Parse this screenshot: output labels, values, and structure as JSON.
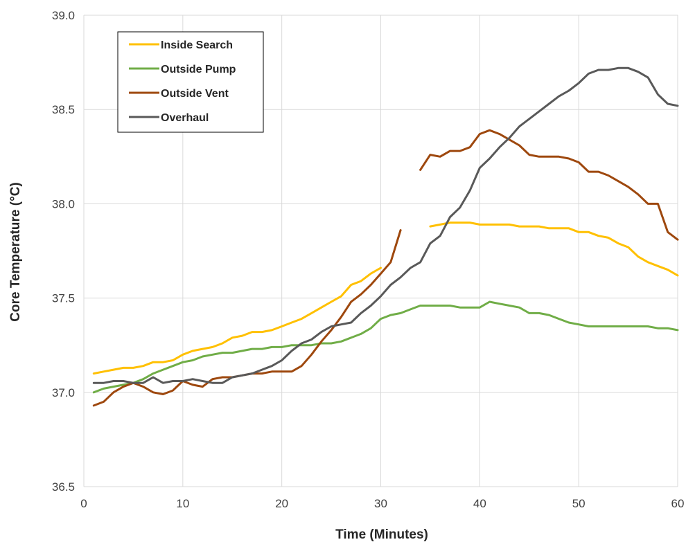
{
  "chart_data": {
    "type": "line",
    "title": "",
    "xlabel": "Time (Minutes)",
    "ylabel": "Core Temperature (°C)",
    "xlim": [
      0,
      60
    ],
    "ylim": [
      36.5,
      39.0
    ],
    "x_ticks": [
      0,
      10,
      20,
      30,
      40,
      50,
      60
    ],
    "x_tick_labels": [
      "0",
      "10",
      "20",
      "30",
      "40",
      "50",
      "60"
    ],
    "y_ticks": [
      36.5,
      37.0,
      37.5,
      38.0,
      38.5,
      39.0
    ],
    "y_tick_labels": [
      "36.5",
      "37.0",
      "37.5",
      "38.0",
      "38.5",
      "39.0"
    ],
    "grid": true,
    "legend_position": "top-left",
    "series": [
      {
        "name": "Inside Search",
        "color": "#FFC000",
        "segments": [
          [
            [
              1,
              37.1
            ],
            [
              2,
              37.11
            ],
            [
              3,
              37.12
            ],
            [
              4,
              37.13
            ],
            [
              5,
              37.13
            ],
            [
              6,
              37.14
            ],
            [
              7,
              37.16
            ],
            [
              8,
              37.16
            ],
            [
              9,
              37.17
            ],
            [
              10,
              37.2
            ],
            [
              11,
              37.22
            ],
            [
              12,
              37.23
            ],
            [
              13,
              37.24
            ],
            [
              14,
              37.26
            ],
            [
              15,
              37.29
            ],
            [
              16,
              37.3
            ],
            [
              17,
              37.32
            ],
            [
              18,
              37.32
            ],
            [
              19,
              37.33
            ],
            [
              20,
              37.35
            ],
            [
              21,
              37.37
            ],
            [
              22,
              37.39
            ],
            [
              23,
              37.42
            ],
            [
              24,
              37.45
            ],
            [
              25,
              37.48
            ],
            [
              26,
              37.51
            ],
            [
              27,
              37.57
            ],
            [
              28,
              37.59
            ],
            [
              29,
              37.63
            ],
            [
              30,
              37.66
            ]
          ],
          [
            [
              35,
              37.88
            ],
            [
              36,
              37.89
            ],
            [
              37,
              37.9
            ],
            [
              38,
              37.9
            ],
            [
              39,
              37.9
            ],
            [
              40,
              37.89
            ],
            [
              41,
              37.89
            ],
            [
              42,
              37.89
            ],
            [
              43,
              37.89
            ],
            [
              44,
              37.88
            ],
            [
              45,
              37.88
            ],
            [
              46,
              37.88
            ],
            [
              47,
              37.87
            ],
            [
              48,
              37.87
            ],
            [
              49,
              37.87
            ],
            [
              50,
              37.85
            ],
            [
              51,
              37.85
            ],
            [
              52,
              37.83
            ],
            [
              53,
              37.82
            ],
            [
              54,
              37.79
            ],
            [
              55,
              37.77
            ],
            [
              56,
              37.72
            ],
            [
              57,
              37.69
            ],
            [
              58,
              37.67
            ],
            [
              59,
              37.65
            ],
            [
              60,
              37.62
            ]
          ]
        ]
      },
      {
        "name": "Outside Pump",
        "color": "#70AD47",
        "segments": [
          [
            [
              1,
              37.0
            ],
            [
              2,
              37.02
            ],
            [
              3,
              37.03
            ],
            [
              4,
              37.04
            ],
            [
              5,
              37.05
            ],
            [
              6,
              37.07
            ],
            [
              7,
              37.1
            ],
            [
              8,
              37.12
            ],
            [
              9,
              37.14
            ],
            [
              10,
              37.16
            ],
            [
              11,
              37.17
            ],
            [
              12,
              37.19
            ],
            [
              13,
              37.2
            ],
            [
              14,
              37.21
            ],
            [
              15,
              37.21
            ],
            [
              16,
              37.22
            ],
            [
              17,
              37.23
            ],
            [
              18,
              37.23
            ],
            [
              19,
              37.24
            ],
            [
              20,
              37.24
            ],
            [
              21,
              37.25
            ],
            [
              22,
              37.25
            ],
            [
              23,
              37.25
            ],
            [
              24,
              37.26
            ],
            [
              25,
              37.26
            ],
            [
              26,
              37.27
            ],
            [
              27,
              37.29
            ],
            [
              28,
              37.31
            ],
            [
              29,
              37.34
            ],
            [
              30,
              37.39
            ],
            [
              31,
              37.41
            ],
            [
              32,
              37.42
            ],
            [
              33,
              37.44
            ],
            [
              34,
              37.46
            ],
            [
              35,
              37.46
            ],
            [
              36,
              37.46
            ],
            [
              37,
              37.46
            ],
            [
              38,
              37.45
            ],
            [
              39,
              37.45
            ],
            [
              40,
              37.45
            ],
            [
              41,
              37.48
            ],
            [
              42,
              37.47
            ],
            [
              43,
              37.46
            ],
            [
              44,
              37.45
            ],
            [
              45,
              37.42
            ],
            [
              46,
              37.42
            ],
            [
              47,
              37.41
            ],
            [
              48,
              37.39
            ],
            [
              49,
              37.37
            ],
            [
              50,
              37.36
            ],
            [
              51,
              37.35
            ],
            [
              52,
              37.35
            ],
            [
              53,
              37.35
            ],
            [
              54,
              37.35
            ],
            [
              55,
              37.35
            ],
            [
              56,
              37.35
            ],
            [
              57,
              37.35
            ],
            [
              58,
              37.34
            ],
            [
              59,
              37.34
            ],
            [
              60,
              37.33
            ]
          ]
        ]
      },
      {
        "name": "Outside Vent",
        "color": "#9E480E",
        "segments": [
          [
            [
              1,
              36.93
            ],
            [
              2,
              36.95
            ],
            [
              3,
              37.0
            ],
            [
              4,
              37.03
            ],
            [
              5,
              37.05
            ],
            [
              6,
              37.03
            ],
            [
              7,
              37.0
            ],
            [
              8,
              36.99
            ],
            [
              9,
              37.01
            ],
            [
              10,
              37.06
            ],
            [
              11,
              37.04
            ],
            [
              12,
              37.03
            ],
            [
              13,
              37.07
            ],
            [
              14,
              37.08
            ],
            [
              15,
              37.08
            ],
            [
              16,
              37.09
            ],
            [
              17,
              37.1
            ],
            [
              18,
              37.1
            ],
            [
              19,
              37.11
            ],
            [
              20,
              37.11
            ],
            [
              21,
              37.11
            ],
            [
              22,
              37.14
            ],
            [
              23,
              37.2
            ],
            [
              24,
              37.27
            ],
            [
              25,
              37.33
            ],
            [
              26,
              37.4
            ],
            [
              27,
              37.48
            ],
            [
              28,
              37.52
            ],
            [
              29,
              37.57
            ],
            [
              30,
              37.63
            ],
            [
              31,
              37.69
            ],
            [
              32,
              37.86
            ]
          ],
          [
            [
              34,
              38.18
            ],
            [
              35,
              38.26
            ],
            [
              36,
              38.25
            ],
            [
              37,
              38.28
            ],
            [
              38,
              38.28
            ],
            [
              39,
              38.3
            ],
            [
              40,
              38.37
            ],
            [
              41,
              38.39
            ],
            [
              42,
              38.37
            ],
            [
              43,
              38.34
            ],
            [
              44,
              38.31
            ],
            [
              45,
              38.26
            ],
            [
              46,
              38.25
            ],
            [
              47,
              38.25
            ],
            [
              48,
              38.25
            ],
            [
              49,
              38.24
            ],
            [
              50,
              38.22
            ],
            [
              51,
              38.17
            ],
            [
              52,
              38.17
            ],
            [
              53,
              38.15
            ],
            [
              54,
              38.12
            ],
            [
              55,
              38.09
            ],
            [
              56,
              38.05
            ],
            [
              57,
              38.0
            ],
            [
              58,
              38.0
            ],
            [
              59,
              37.85
            ],
            [
              60,
              37.81
            ]
          ]
        ]
      },
      {
        "name": "Overhaul",
        "color": "#595959",
        "segments": [
          [
            [
              1,
              37.05
            ],
            [
              2,
              37.05
            ],
            [
              3,
              37.06
            ],
            [
              4,
              37.06
            ],
            [
              5,
              37.05
            ],
            [
              6,
              37.05
            ],
            [
              7,
              37.08
            ],
            [
              8,
              37.05
            ],
            [
              9,
              37.06
            ],
            [
              10,
              37.06
            ],
            [
              11,
              37.07
            ],
            [
              12,
              37.06
            ],
            [
              13,
              37.05
            ],
            [
              14,
              37.05
            ],
            [
              15,
              37.08
            ],
            [
              16,
              37.09
            ],
            [
              17,
              37.1
            ],
            [
              18,
              37.12
            ],
            [
              19,
              37.14
            ],
            [
              20,
              37.17
            ],
            [
              21,
              37.22
            ],
            [
              22,
              37.26
            ],
            [
              23,
              37.28
            ],
            [
              24,
              37.32
            ],
            [
              25,
              37.35
            ],
            [
              26,
              37.36
            ],
            [
              27,
              37.37
            ],
            [
              28,
              37.42
            ],
            [
              29,
              37.46
            ],
            [
              30,
              37.51
            ],
            [
              31,
              37.57
            ],
            [
              32,
              37.61
            ],
            [
              33,
              37.66
            ],
            [
              34,
              37.69
            ],
            [
              35,
              37.79
            ],
            [
              36,
              37.83
            ],
            [
              37,
              37.93
            ],
            [
              38,
              37.98
            ],
            [
              39,
              38.07
            ],
            [
              40,
              38.19
            ],
            [
              41,
              38.24
            ],
            [
              42,
              38.3
            ],
            [
              43,
              38.35
            ],
            [
              44,
              38.41
            ],
            [
              45,
              38.45
            ],
            [
              46,
              38.49
            ],
            [
              47,
              38.53
            ],
            [
              48,
              38.57
            ],
            [
              49,
              38.6
            ],
            [
              50,
              38.64
            ],
            [
              51,
              38.69
            ],
            [
              52,
              38.71
            ],
            [
              53,
              38.71
            ],
            [
              54,
              38.72
            ],
            [
              55,
              38.72
            ],
            [
              56,
              38.7
            ],
            [
              57,
              38.67
            ],
            [
              58,
              38.58
            ],
            [
              59,
              38.53
            ],
            [
              60,
              38.52
            ]
          ]
        ]
      }
    ]
  }
}
